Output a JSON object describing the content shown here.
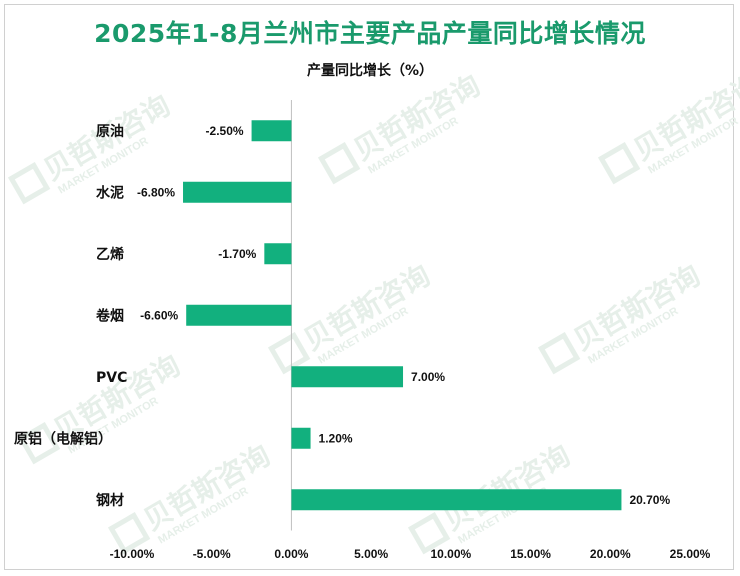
{
  "chart_data": {
    "type": "bar",
    "orientation": "horizontal",
    "title": "2025年1-8月兰州市主要产品产量同比增长情况",
    "subtitle": "产量同比增长（%）",
    "categories": [
      "原油",
      "水泥",
      "乙烯",
      "卷烟",
      "PVC",
      "原铝（电解铝）",
      "钢材"
    ],
    "values": [
      -2.5,
      -6.8,
      -1.7,
      -6.6,
      7.0,
      1.2,
      20.7
    ],
    "data_labels": [
      "-2.50%",
      "-6.80%",
      "-1.70%",
      "-6.60%",
      "7.00%",
      "1.20%",
      "20.70%"
    ],
    "xlim": [
      -10,
      25
    ],
    "xticks": [
      -10,
      -5,
      0,
      5,
      10,
      15,
      20,
      25
    ],
    "xtick_labels": [
      "-10.00%",
      "-5.00%",
      "0.00%",
      "5.00%",
      "10.00%",
      "15.00%",
      "20.00%",
      "25.00%"
    ],
    "grid": false,
    "legend": "none",
    "bar_color": "#12b07e",
    "axis_color": "#bfbfbf"
  },
  "watermark": {
    "cn": "贝哲斯咨询",
    "en": "MARKET MONITOR",
    "color": "#e6efe9"
  },
  "colors": {
    "title": "#1a9a6c"
  }
}
